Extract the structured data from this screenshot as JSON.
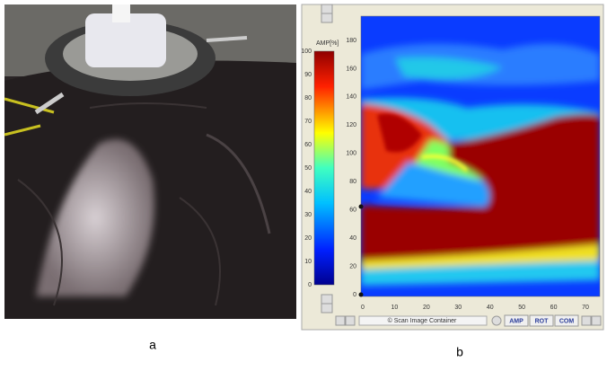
{
  "panels": {
    "a": {
      "label": "a"
    },
    "b": {
      "label": "b",
      "colorbar": {
        "title": "AMP[%]",
        "ticks": [
          0,
          10,
          20,
          30,
          40,
          50,
          60,
          70,
          80,
          90,
          100
        ]
      },
      "heatmap": {
        "yticks": [
          0,
          20,
          40,
          60,
          80,
          100,
          120,
          140,
          160,
          180
        ],
        "xticks": [
          0,
          10,
          20,
          30,
          40,
          50,
          60,
          70
        ]
      },
      "footer": {
        "caption": "© Scan Image Container",
        "buttons": [
          "AMP",
          "ROT",
          "COM"
        ]
      }
    }
  }
}
